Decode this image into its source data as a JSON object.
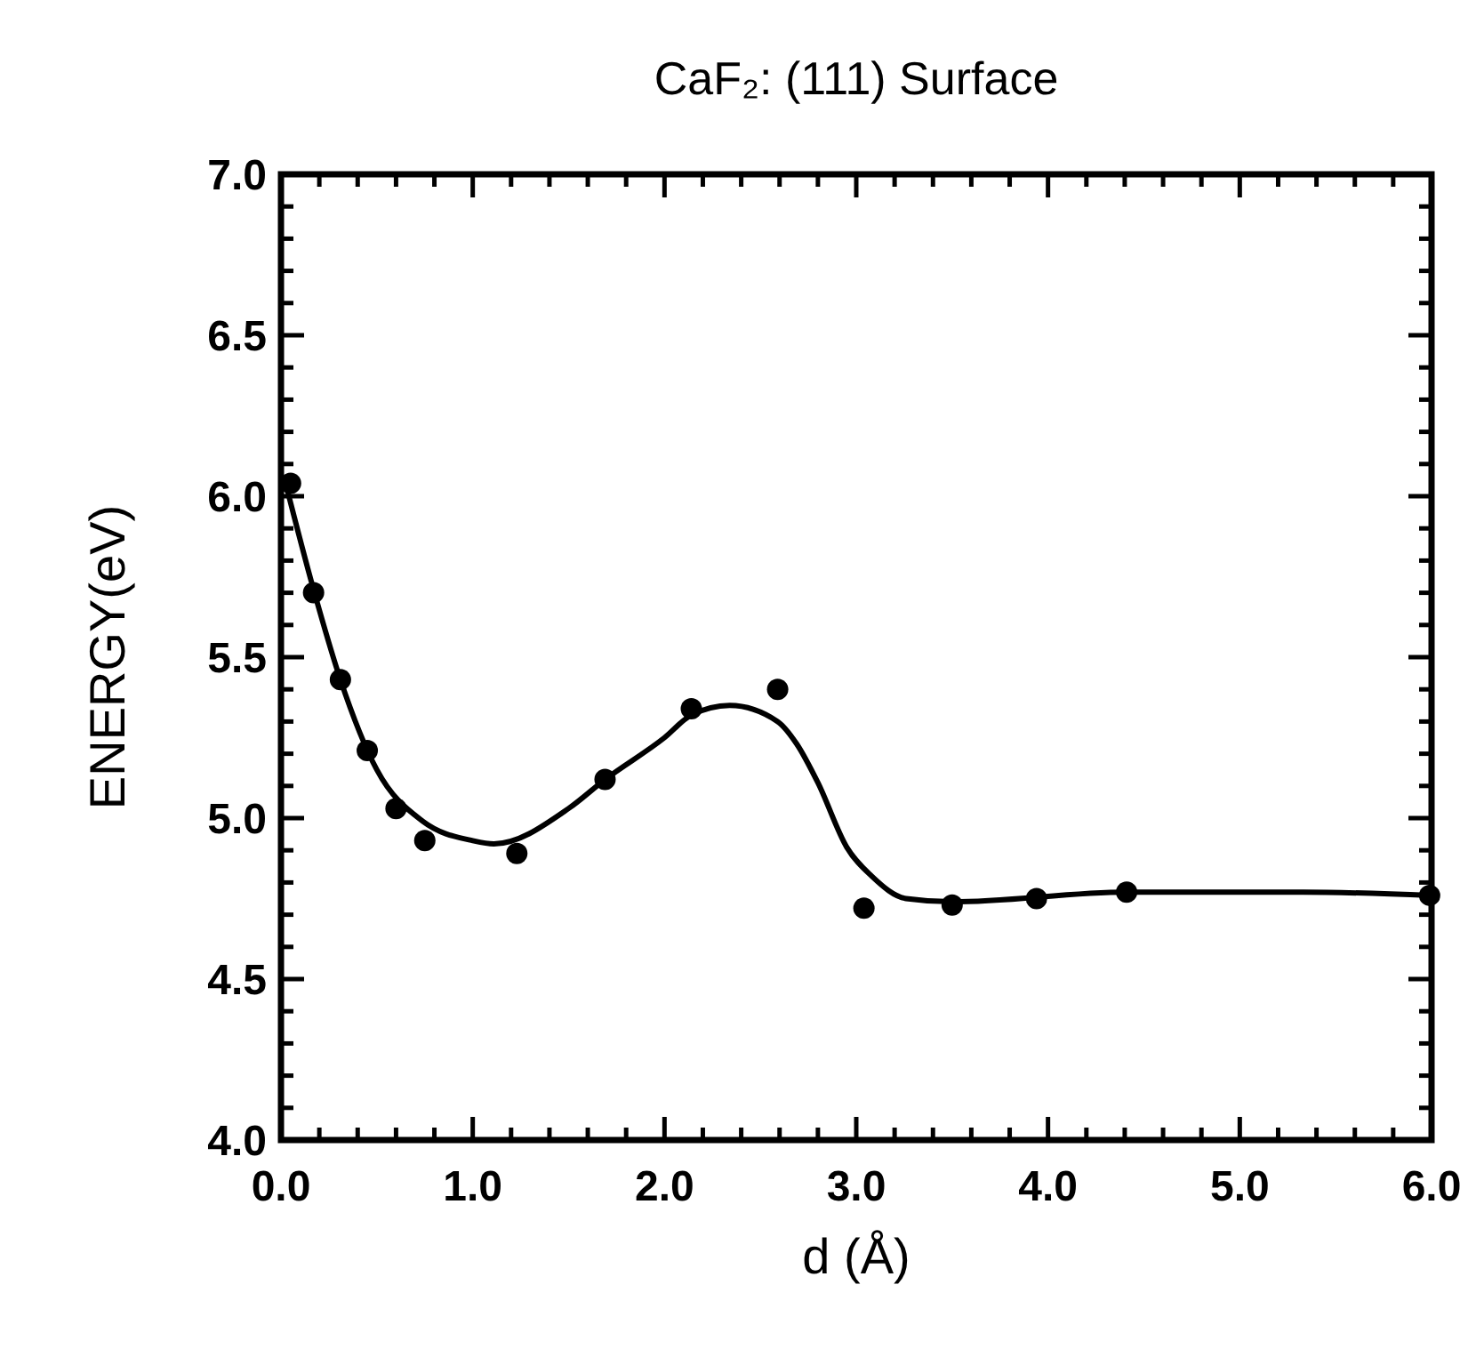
{
  "chart_data": {
    "type": "scatter",
    "title": "CaF₂: (111) Surface",
    "xlabel": "d (Å)",
    "ylabel": "ENERGY(eV)",
    "xlim": [
      0,
      6
    ],
    "ylim": [
      4,
      7
    ],
    "xticks": [
      {
        "value": 0,
        "label": "0.0"
      },
      {
        "value": 0.2,
        "label": null
      },
      {
        "value": 0.4,
        "label": null
      },
      {
        "value": 0.6,
        "label": null
      },
      {
        "value": 0.8,
        "label": null
      },
      {
        "value": 1,
        "label": "1.0"
      },
      {
        "value": 1.2,
        "label": null
      },
      {
        "value": 1.4,
        "label": null
      },
      {
        "value": 1.6,
        "label": null
      },
      {
        "value": 1.8,
        "label": null
      },
      {
        "value": 2,
        "label": "2.0"
      },
      {
        "value": 2.2,
        "label": null
      },
      {
        "value": 2.4,
        "label": null
      },
      {
        "value": 2.6,
        "label": null
      },
      {
        "value": 2.8,
        "label": null
      },
      {
        "value": 3,
        "label": "3.0"
      },
      {
        "value": 3.2,
        "label": null
      },
      {
        "value": 3.4,
        "label": null
      },
      {
        "value": 3.6,
        "label": null
      },
      {
        "value": 3.8,
        "label": null
      },
      {
        "value": 4,
        "label": "4.0"
      },
      {
        "value": 4.2,
        "label": null
      },
      {
        "value": 4.4,
        "label": null
      },
      {
        "value": 4.6,
        "label": null
      },
      {
        "value": 4.8,
        "label": null
      },
      {
        "value": 5,
        "label": "5.0"
      },
      {
        "value": 5.2,
        "label": null
      },
      {
        "value": 5.4,
        "label": null
      },
      {
        "value": 5.6,
        "label": null
      },
      {
        "value": 5.8,
        "label": null
      },
      {
        "value": 6,
        "label": "6.0"
      }
    ],
    "yticks": [
      {
        "value": 4,
        "label": "4.0"
      },
      {
        "value": 4.1,
        "label": null
      },
      {
        "value": 4.2,
        "label": null
      },
      {
        "value": 4.3,
        "label": null
      },
      {
        "value": 4.4,
        "label": null
      },
      {
        "value": 4.5,
        "label": "4.5"
      },
      {
        "value": 4.6,
        "label": null
      },
      {
        "value": 4.7,
        "label": null
      },
      {
        "value": 4.8,
        "label": null
      },
      {
        "value": 4.9,
        "label": null
      },
      {
        "value": 5,
        "label": "5.0"
      },
      {
        "value": 5.1,
        "label": null
      },
      {
        "value": 5.2,
        "label": null
      },
      {
        "value": 5.3,
        "label": null
      },
      {
        "value": 5.4,
        "label": null
      },
      {
        "value": 5.5,
        "label": "5.5"
      },
      {
        "value": 5.6,
        "label": null
      },
      {
        "value": 5.7,
        "label": null
      },
      {
        "value": 5.8,
        "label": null
      },
      {
        "value": 5.9,
        "label": null
      },
      {
        "value": 6,
        "label": "6.0"
      },
      {
        "value": 6.1,
        "label": null
      },
      {
        "value": 6.2,
        "label": null
      },
      {
        "value": 6.3,
        "label": null
      },
      {
        "value": 6.4,
        "label": null
      },
      {
        "value": 6.5,
        "label": "6.5"
      },
      {
        "value": 6.6,
        "label": null
      },
      {
        "value": 6.7,
        "label": null
      },
      {
        "value": 6.8,
        "label": null
      },
      {
        "value": 6.9,
        "label": null
      },
      {
        "value": 7,
        "label": "7.0"
      }
    ],
    "grid": false,
    "series": [
      {
        "marker": "circle",
        "color": "#000000",
        "x": [
          0.05,
          0.17,
          0.31,
          0.45,
          0.6,
          0.75,
          1.23,
          1.69,
          2.14,
          2.59,
          3.04,
          3.5,
          3.94,
          4.41,
          5.99
        ],
        "values": [
          6.04,
          5.7,
          5.43,
          5.21,
          5.03,
          4.93,
          4.89,
          5.12,
          5.34,
          5.4,
          4.72,
          4.73,
          4.75,
          4.77,
          4.76
        ]
      },
      {
        "type": "line",
        "marker": "none",
        "line_style": "solid",
        "color": "#000000",
        "x": [
          0.02,
          0.17,
          0.31,
          0.5,
          0.74,
          1.0,
          1.11,
          1.5,
          1.69,
          2.0,
          2.14,
          2.34,
          2.59,
          2.69,
          2.8,
          2.95,
          3.08,
          3.26,
          3.5,
          4.41,
          5.33,
          6.0
        ],
        "values": [
          6.05,
          5.71,
          5.43,
          5.15,
          4.99,
          4.93,
          4.92,
          5.03,
          5.12,
          5.25,
          5.32,
          5.35,
          5.3,
          5.23,
          5.11,
          4.91,
          4.82,
          4.75,
          4.74,
          4.77,
          4.77,
          4.76
        ]
      }
    ]
  }
}
